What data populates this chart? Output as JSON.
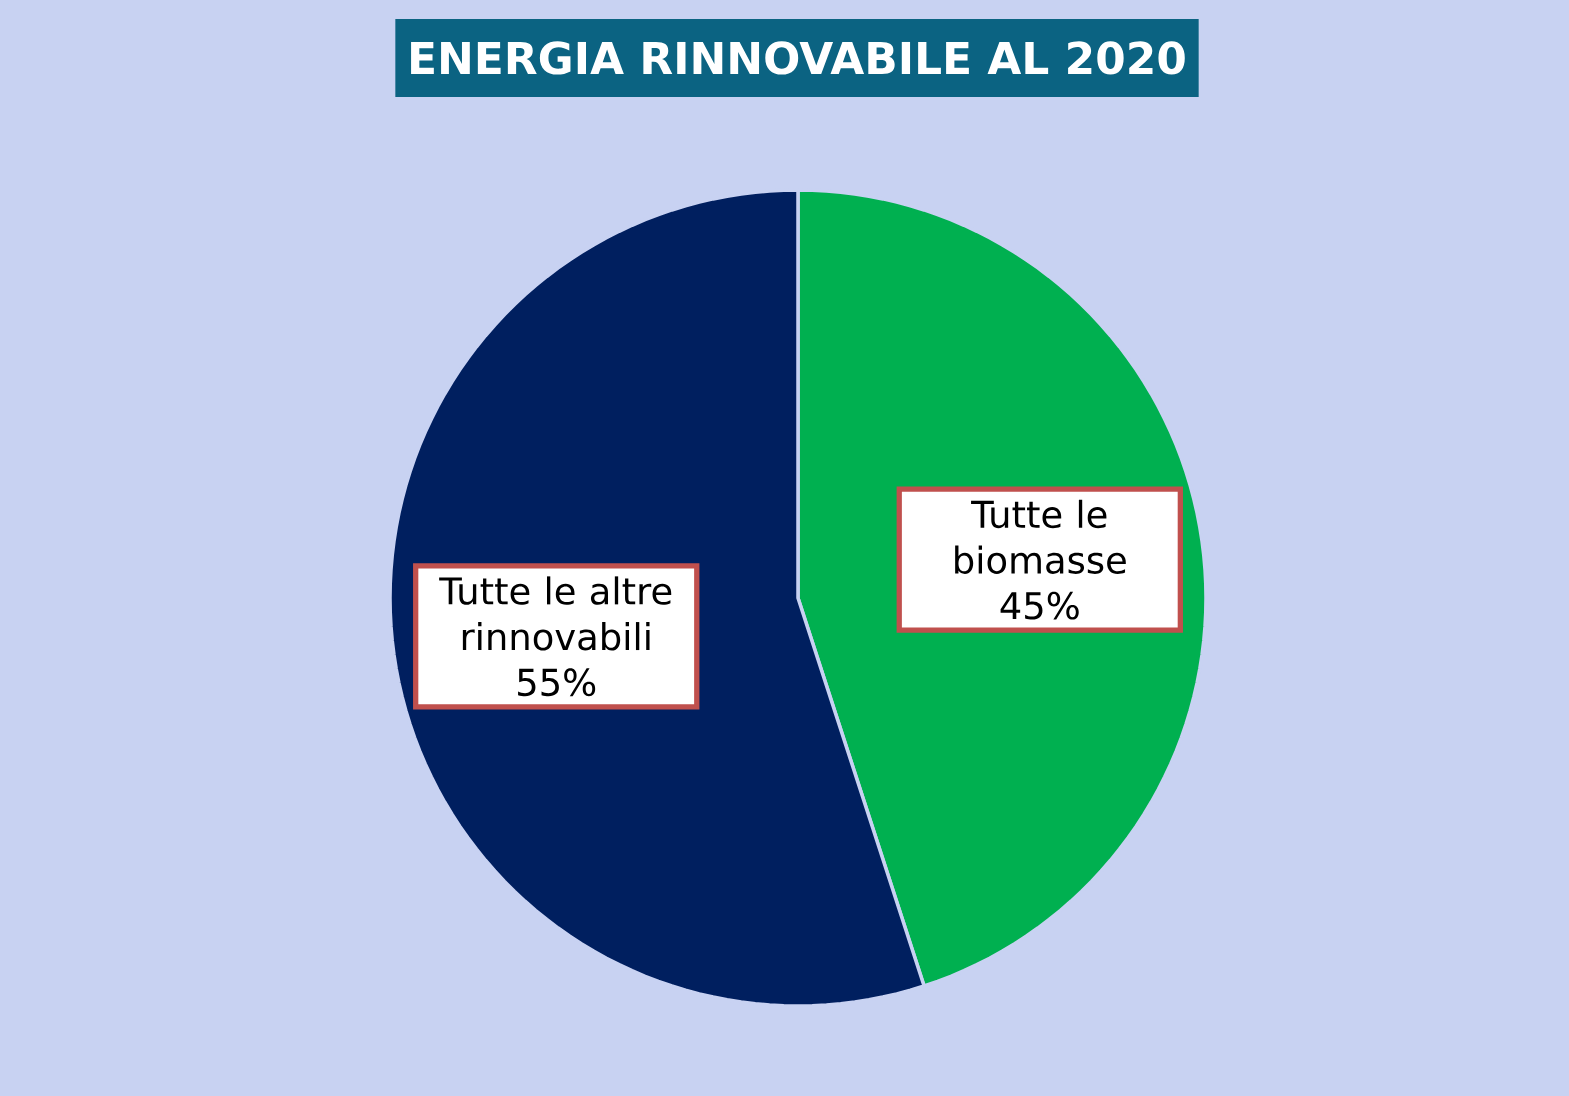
{
  "chart_data": {
    "type": "pie",
    "title": "ENERGIA RINNOVABILE AL 2020",
    "categories": [
      "Tutte le biomasse",
      "Tutte le altre rinnovabili"
    ],
    "values": [
      45,
      55
    ],
    "colors": [
      "#00b050",
      "#001f5f"
    ],
    "value_labels": [
      "45%",
      "55%"
    ]
  }
}
